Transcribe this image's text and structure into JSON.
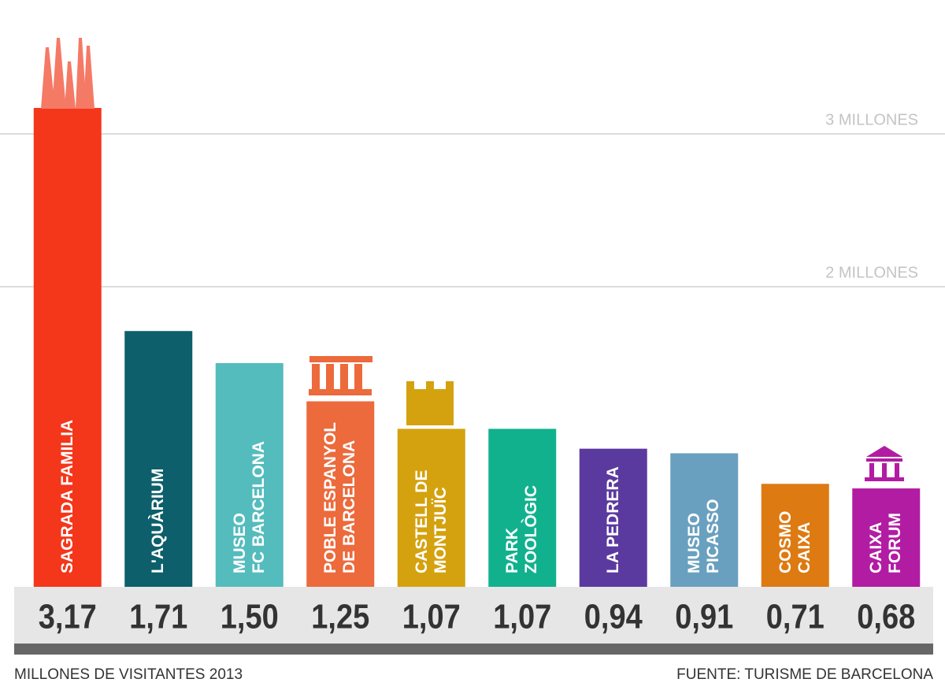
{
  "chart_data": {
    "type": "bar",
    "categories": [
      "SAGRADA FAMILIA",
      "L'AQUÀRIUM",
      "MUSEO\nFC BARCELONA",
      "POBLE ESPANYOL\nDE BARCELONA",
      "CASTELL DE\nMONTJUÏC",
      "PARK\nZOOLÒGIC",
      "LA PEDRERA",
      "MUSEO\nPICASSO",
      "COSMO\nCAIXA",
      "CAIXA\nFORUM"
    ],
    "values": [
      3.17,
      1.71,
      1.5,
      1.25,
      1.07,
      1.07,
      0.94,
      0.91,
      0.71,
      0.68
    ],
    "value_labels": [
      "3,17",
      "1,71",
      "1,50",
      "1,25",
      "1,07",
      "1,07",
      "0,94",
      "0,91",
      "0,71",
      "0,68"
    ],
    "colors": [
      "#f4361b",
      "#0d5f6b",
      "#55bcbd",
      "#ec6a3c",
      "#d4a20f",
      "#12b18e",
      "#5b3a9f",
      "#6aa0bf",
      "#dd7a12",
      "#b21ca3"
    ],
    "ylim": [
      0,
      3.8
    ],
    "yticks": [
      {
        "value": 2,
        "label": "2 MILLONES"
      },
      {
        "value": 3,
        "label": "3 MILLONES"
      }
    ],
    "grid": true,
    "xlabel": "MILLONES DE VISITANTES 2013",
    "source": "FUENTE: TURISME DE BARCELONA"
  }
}
